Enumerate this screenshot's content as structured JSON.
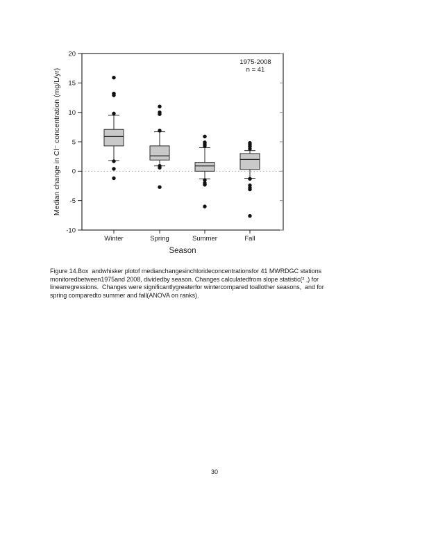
{
  "page": {
    "number": "30"
  },
  "chart_data": {
    "type": "box",
    "title": "",
    "xlabel": "Season",
    "ylabel": "Median change in Cl⁻ concentration (mg/L/yr)",
    "annotation": [
      "1975-2008",
      "n = 41"
    ],
    "ylim": [
      -10,
      20
    ],
    "yticks": [
      20,
      15,
      10,
      5,
      0,
      -5,
      -10
    ],
    "zero_reference_line": 0,
    "grid": false,
    "legend": "none",
    "box_fill": "#c9c9c9",
    "dot_color": "#111111",
    "axis_color": "#2a2a2a",
    "categories": [
      "Winter",
      "Spring",
      "Summer",
      "Fall"
    ],
    "series": [
      {
        "category": "Winter",
        "q1": 4.3,
        "median": 5.9,
        "q3": 7.1,
        "whisker_low": 1.8,
        "whisker_high": 9.5,
        "outliers": [
          15.9,
          13.2,
          12.9,
          9.8,
          1.7,
          0.4,
          -1.2
        ]
      },
      {
        "category": "Spring",
        "q1": 1.9,
        "median": 2.6,
        "q3": 4.3,
        "whisker_low": 0.9,
        "whisker_high": 6.7,
        "outliers": [
          11.0,
          10.0,
          9.7,
          6.9,
          0.9,
          0.6,
          -2.7
        ]
      },
      {
        "category": "Summer",
        "q1": 0.0,
        "median": 0.9,
        "q3": 1.5,
        "whisker_low": -1.3,
        "whisker_high": 4.0,
        "outliers": [
          5.9,
          4.9,
          4.6,
          4.3,
          -1.5,
          -2.0,
          -2.3,
          -6.0
        ]
      },
      {
        "category": "Fall",
        "q1": 0.3,
        "median": 2.0,
        "q3": 3.0,
        "whisker_low": -1.2,
        "whisker_high": 3.5,
        "outliers": [
          4.8,
          4.5,
          4.2,
          3.8,
          -1.3,
          -2.4,
          -2.8,
          -3.1,
          -7.6
        ]
      }
    ]
  },
  "caption": {
    "lines": [
      "Figure 14.Box  andwhisker plotof medianchangesinchlorideconcentrationsfor 41 MWRDGC stations",
      "monitoredbetween1975and 2008, dividedby season. Changes calculatedfrom slope statistic(² ,) for",
      "linearregressions.  Changes were significantlygreaterfor wintercompared toallother seasons,  and for",
      "spring comparedto summer and fall(ANOVA on ranks)."
    ]
  }
}
